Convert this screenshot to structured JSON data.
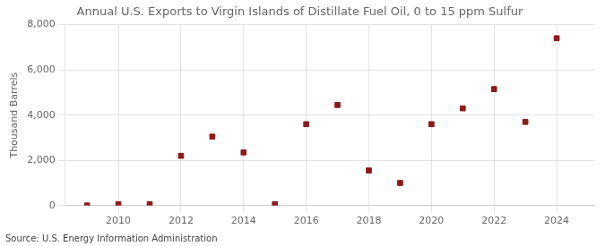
{
  "chart_data": {
    "type": "scatter",
    "title": "Annual U.S. Exports to Virgin Islands of Distillate Fuel Oil, 0 to 15 ppm Sulfur",
    "ylabel": "Thousand Barrels",
    "annotations": [
      "Source: U.S. Energy Information Administration"
    ],
    "x": [
      2009,
      2010,
      2011,
      2012,
      2013,
      2014,
      2015,
      2016,
      2017,
      2018,
      2019,
      2020,
      2021,
      2022,
      2023,
      2024
    ],
    "values": [
      5,
      60,
      60,
      2200,
      3050,
      2350,
      60,
      3600,
      4450,
      1550,
      1000,
      3600,
      4300,
      5150,
      3700,
      7400
    ],
    "color": "#8b1a1a",
    "marker": "square",
    "xlim": [
      2008.3,
      2025.2
    ],
    "xticks": [
      2010,
      2012,
      2014,
      2016,
      2018,
      2020,
      2022,
      2024
    ],
    "ylim": [
      0,
      8000
    ],
    "yticks": [
      0,
      {
        "value": 2000,
        "label": "2,000"
      },
      {
        "value": 4000,
        "label": "4,000"
      },
      {
        "value": 6000,
        "label": "6,000"
      },
      {
        "value": 8000,
        "label": "8,000"
      }
    ],
    "grid": true
  }
}
